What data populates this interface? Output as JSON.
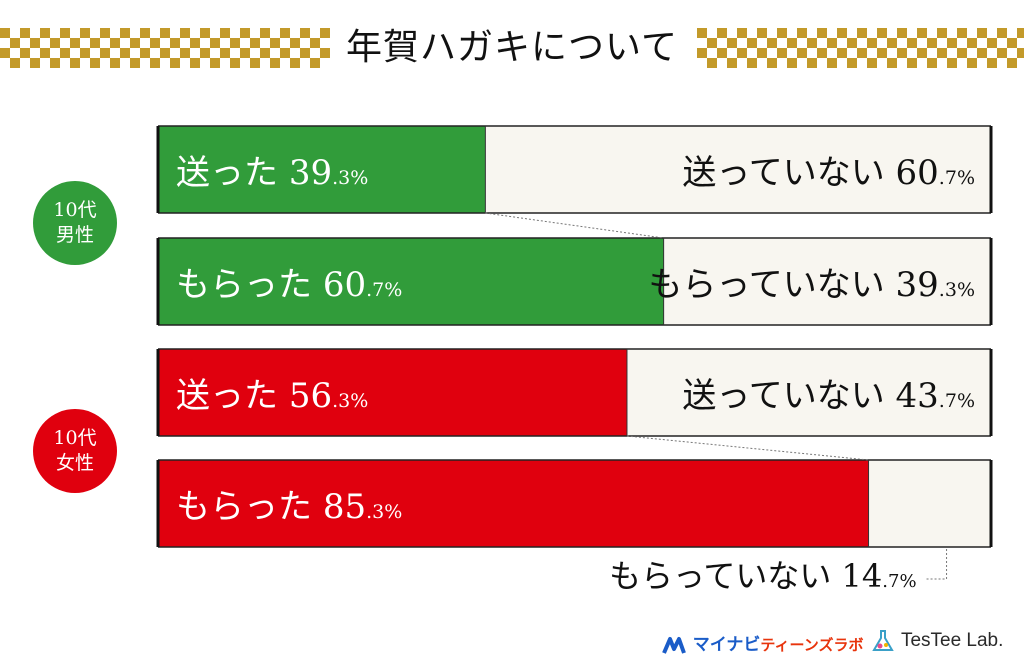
{
  "title": "年賀ハガキについて",
  "colors": {
    "gold": "#c39a2a",
    "male": "#319c3a",
    "female": "#e0000e",
    "rest": "#f8f6f0",
    "frame": "#111111"
  },
  "groups": [
    {
      "label_line1": "10代",
      "label_line2": "男性",
      "color": "#319c3a"
    },
    {
      "label_line1": "10代",
      "label_line2": "女性",
      "color": "#e0000e"
    }
  ],
  "chart_data": {
    "type": "bar",
    "title": "年賀ハガキについて",
    "unit": "%",
    "bars": [
      {
        "group": "10代男性",
        "yes_label": "送った",
        "yes_int": "39",
        "yes_dec": ".3",
        "no_label": "送っていない",
        "no_int": "60",
        "no_dec": ".7",
        "yes": 39.3,
        "no": 60.7
      },
      {
        "group": "10代男性",
        "yes_label": "もらった",
        "yes_int": "60",
        "yes_dec": ".7",
        "no_label": "もらっていない",
        "no_int": "39",
        "no_dec": ".3",
        "yes": 60.7,
        "no": 39.3
      },
      {
        "group": "10代女性",
        "yes_label": "送った",
        "yes_int": "56",
        "yes_dec": ".3",
        "no_label": "送っていない",
        "no_int": "43",
        "no_dec": ".7",
        "yes": 56.3,
        "no": 43.7
      },
      {
        "group": "10代女性",
        "yes_label": "もらった",
        "yes_int": "85",
        "yes_dec": ".3",
        "no_label": "もらっていない",
        "no_int": "14",
        "no_dec": ".7",
        "yes": 85.3,
        "no": 14.7
      }
    ]
  },
  "footer": {
    "brand1": "マイナビ",
    "brand1_sub": "ティーンズラボ",
    "brand2": "TesTee Lab."
  }
}
